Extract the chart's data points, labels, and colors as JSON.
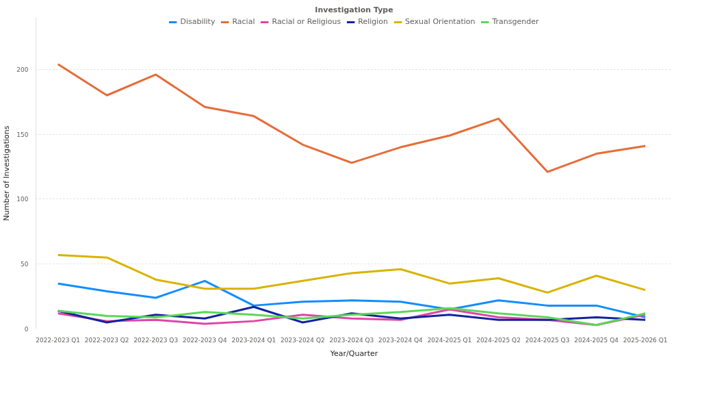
{
  "chart_data": {
    "type": "line",
    "xlabel": "Year/Quarter",
    "ylabel": "Number of Investigations",
    "legend_title": "Investigation Type",
    "legend": "top",
    "grid": "y",
    "marker": "none",
    "line_style": "solid",
    "categories": [
      "2022-2023 Q1",
      "2022-2023 Q2",
      "2022-2023 Q3",
      "2022-2023 Q4",
      "2023-2024 Q1",
      "2023-2024 Q2",
      "2023-2024 Q3",
      "2023-2024 Q4",
      "2024-2025 Q1",
      "2024-2025 Q2",
      "2024-2025 Q3",
      "2024-2025 Q4",
      "2025-2026 Q1"
    ],
    "ylim": [
      0,
      240
    ],
    "yticks": [
      0,
      50,
      100,
      150,
      200
    ],
    "series": [
      {
        "name": "Disability",
        "color": "#118dff",
        "values": [
          35,
          29,
          24,
          37,
          18,
          21,
          22,
          21,
          15,
          22,
          18,
          18,
          9
        ]
      },
      {
        "name": "Racial",
        "color": "#e66c37",
        "values": [
          204,
          180,
          196,
          171,
          164,
          142,
          128,
          140,
          149,
          162,
          121,
          135,
          141
        ]
      },
      {
        "name": "Racial or Religious",
        "color": "#e044a7",
        "values": [
          12,
          6,
          7,
          4,
          6,
          11,
          8,
          7,
          15,
          9,
          7,
          3,
          11
        ]
      },
      {
        "name": "Religion",
        "color": "#12239e",
        "values": [
          14,
          5,
          11,
          8,
          17,
          5,
          12,
          8,
          11,
          7,
          7,
          9,
          7
        ]
      },
      {
        "name": "Sexual Orientation",
        "color": "#d9b300",
        "values": [
          57,
          55,
          38,
          31,
          31,
          37,
          43,
          46,
          35,
          39,
          28,
          41,
          30
        ]
      },
      {
        "name": "Transgender",
        "color": "#5ad75a",
        "values": [
          14,
          10,
          9,
          13,
          11,
          8,
          11,
          13,
          16,
          12,
          9,
          3,
          12
        ]
      }
    ]
  }
}
